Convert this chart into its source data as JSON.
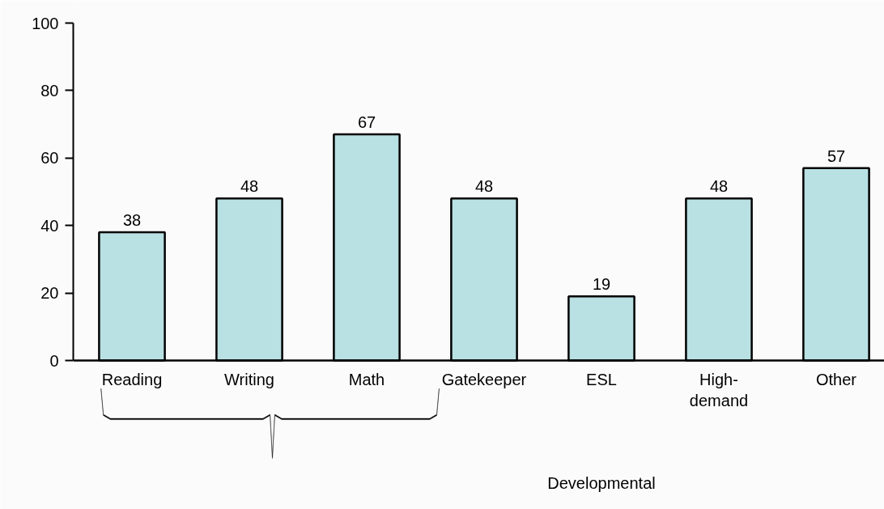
{
  "chart_data": {
    "type": "bar",
    "categories": [
      "Reading",
      "Writing",
      "Math",
      "Gatekeeper",
      "ESL",
      "High-demand",
      "Other"
    ],
    "values": [
      38,
      48,
      67,
      48,
      19,
      48,
      57
    ],
    "color": "#b9e0e3",
    "ylim": [
      0,
      100
    ],
    "yticks": [
      0,
      20,
      40,
      60,
      80,
      100
    ],
    "data_labels": true,
    "grid": false,
    "annotations": [
      "Developmental"
    ]
  }
}
